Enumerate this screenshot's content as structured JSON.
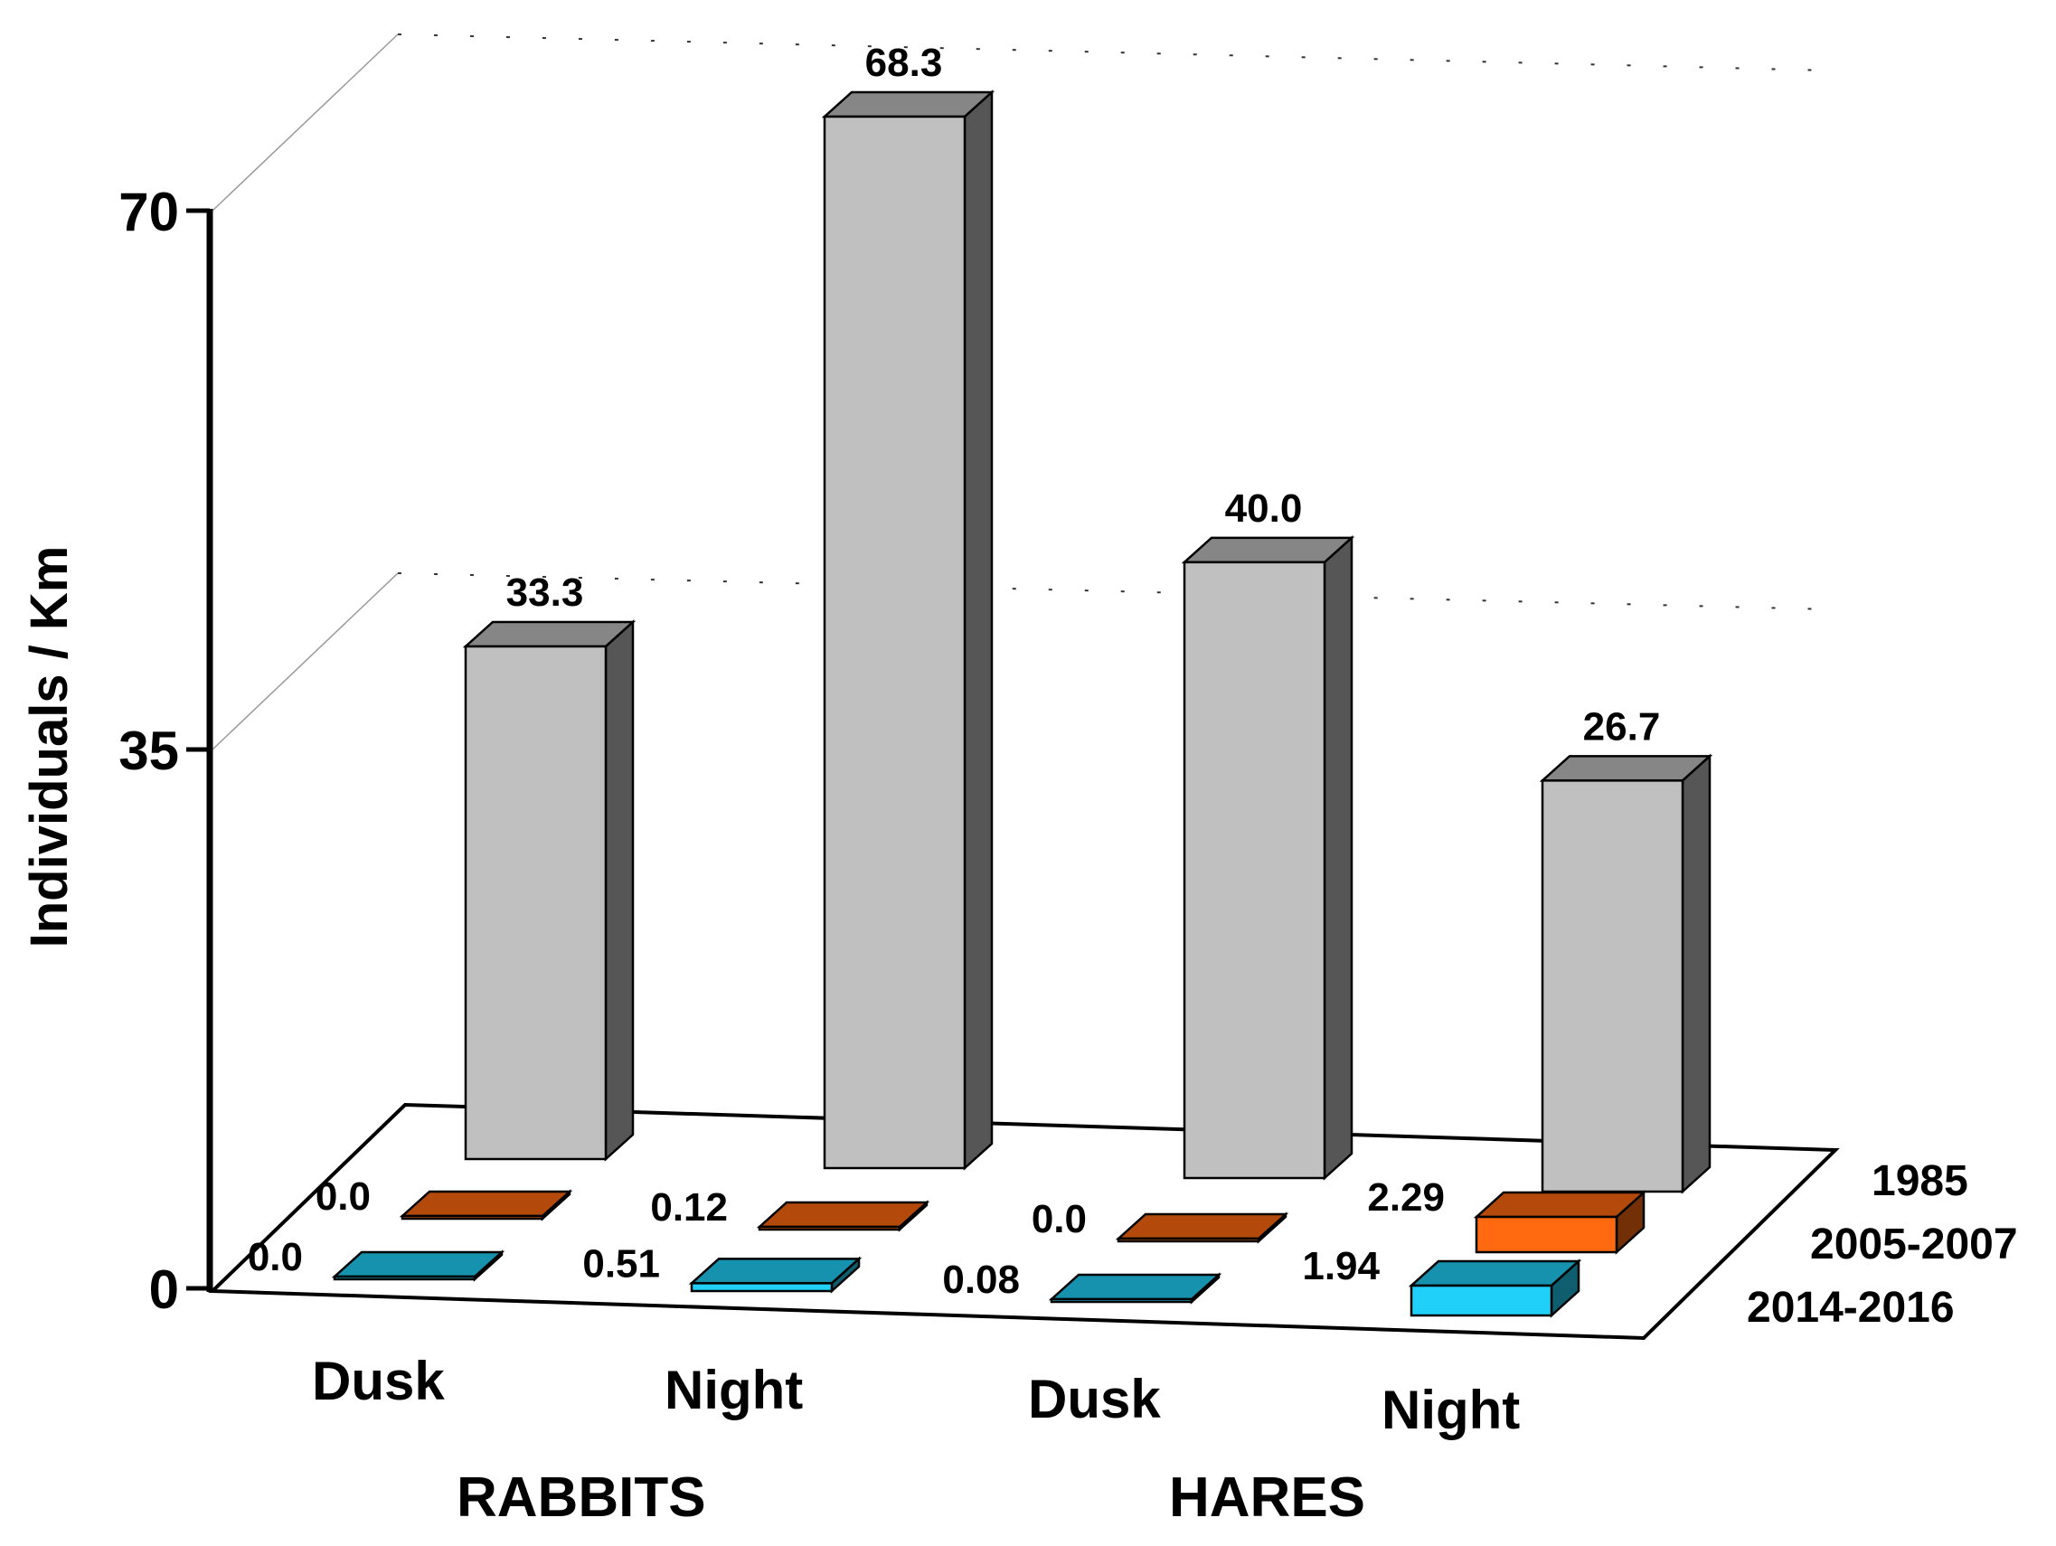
{
  "chart_data": {
    "type": "bar",
    "style": "3d",
    "ylabel": "Individuals / Km",
    "ylim": [
      0,
      70
    ],
    "yticks": [
      "0",
      "35",
      "70"
    ],
    "grid": true,
    "groups": [
      "RABBITS",
      "HARES"
    ],
    "categories": [
      "Dusk",
      "Night",
      "Dusk",
      "Night"
    ],
    "series": [
      {
        "name": "1985",
        "values": [
          33.3,
          68.3,
          40.0,
          26.7
        ],
        "labels": [
          "33.3",
          "68.3",
          "40.0",
          "26.7"
        ],
        "color": "#c0c0c0"
      },
      {
        "name": "2005-2007",
        "values": [
          0.0,
          0.12,
          0.0,
          2.29
        ],
        "labels": [
          "0.0",
          "0.12",
          "0.0",
          "2.29"
        ],
        "color": "#ff6a10"
      },
      {
        "name": "2014-2016",
        "values": [
          0.0,
          0.51,
          0.08,
          1.94
        ],
        "labels": [
          "0.0",
          "0.51",
          "0.08",
          "1.94"
        ],
        "color": "#20d0f8"
      }
    ]
  }
}
